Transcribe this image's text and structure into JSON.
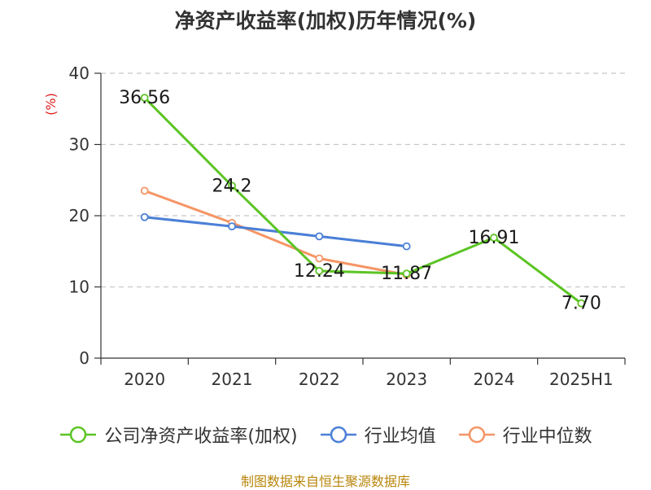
{
  "title": "净资产收益率(加权)历年情况(%)",
  "source": "制图数据来自恒生聚源数据库",
  "chart_data": {
    "type": "line",
    "title": "净资产收益率(加权)历年情况(%)",
    "ylabel": "(%)",
    "xlabel": "",
    "ylim": [
      0,
      40
    ],
    "yticks": [
      0,
      10,
      20,
      30,
      40
    ],
    "grid": true,
    "legend_position": "bottom",
    "categories": [
      "2020",
      "2021",
      "2022",
      "2023",
      "2024",
      "2025H1"
    ],
    "series": [
      {
        "name": "公司净资产收益率(加权)",
        "color": "#5cc424",
        "values": [
          36.56,
          24.2,
          12.24,
          11.87,
          16.91,
          7.7
        ],
        "labels": [
          "36.56",
          "24.2",
          "12.24",
          "11.87",
          "16.91",
          "7.70"
        ],
        "show_labels": true
      },
      {
        "name": "行业均值",
        "color": "#4a7fd6",
        "values": [
          19.8,
          18.5,
          17.1,
          15.7,
          null,
          null
        ],
        "show_labels": false
      },
      {
        "name": "行业中位数",
        "color": "#f59565",
        "values": [
          23.5,
          19.0,
          14.0,
          11.7,
          null,
          null
        ],
        "show_labels": false
      }
    ]
  }
}
